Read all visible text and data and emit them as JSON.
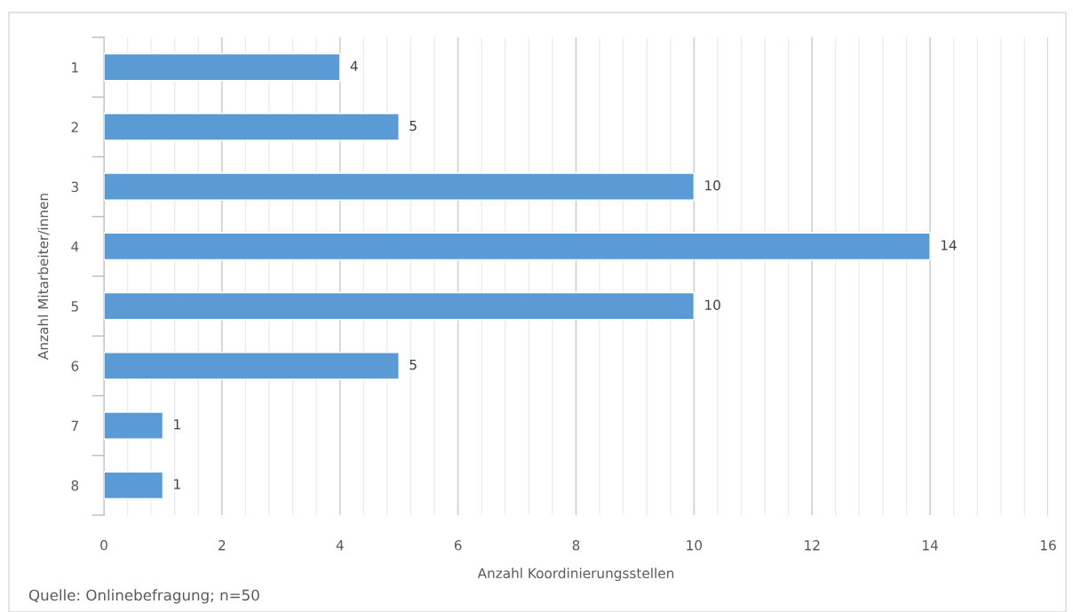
{
  "chart_data": {
    "type": "bar",
    "orientation": "horizontal",
    "categories": [
      "1",
      "2",
      "3",
      "4",
      "5",
      "6",
      "7",
      "8"
    ],
    "values": [
      4,
      5,
      10,
      14,
      10,
      5,
      1,
      1
    ],
    "color": "#5b9bd5",
    "data_labels": true,
    "xlabel": "Anzahl Koordinierungsstellen",
    "ylabel": "Anzahl Mitarbeiter/innen",
    "annotations": [
      "Quelle: Onlinebefragung; n=50"
    ],
    "xlim": [
      0,
      16
    ],
    "xticks": [
      0,
      {
        "value": 0.4,
        "label": null
      },
      {
        "value": 0.8,
        "label": null
      },
      {
        "value": 1.2,
        "label": null
      },
      {
        "value": 1.6,
        "label": null
      },
      2,
      {
        "value": 2.4,
        "label": null
      },
      {
        "value": 2.8,
        "label": null
      },
      {
        "value": 3.2,
        "label": null
      },
      {
        "value": 3.6,
        "label": null
      },
      4,
      {
        "value": 4.4,
        "label": null
      },
      {
        "value": 4.8,
        "label": null
      },
      {
        "value": 5.2,
        "label": null
      },
      {
        "value": 5.6,
        "label": null
      },
      6,
      {
        "value": 6.4,
        "label": null
      },
      {
        "value": 6.8,
        "label": null
      },
      {
        "value": 7.2,
        "label": null
      },
      {
        "value": 7.6,
        "label": null
      },
      8,
      {
        "value": 8.4,
        "label": null
      },
      {
        "value": 8.8,
        "label": null
      },
      {
        "value": 9.2,
        "label": null
      },
      {
        "value": 9.6,
        "label": null
      },
      10,
      {
        "value": 10.4,
        "label": null
      },
      {
        "value": 10.8,
        "label": null
      },
      {
        "value": 11.2,
        "label": null
      },
      {
        "value": 11.6,
        "label": null
      },
      12,
      {
        "value": 12.4,
        "label": null
      },
      {
        "value": 12.8,
        "label": null
      },
      {
        "value": 13.2,
        "label": null
      },
      {
        "value": 13.6,
        "label": null
      },
      14,
      {
        "value": 14.4,
        "label": null
      },
      {
        "value": 14.8,
        "label": null
      },
      {
        "value": 15.2,
        "label": null
      },
      {
        "value": 15.6,
        "label": null
      },
      16
    ],
    "grid": "x",
    "legend": false
  }
}
